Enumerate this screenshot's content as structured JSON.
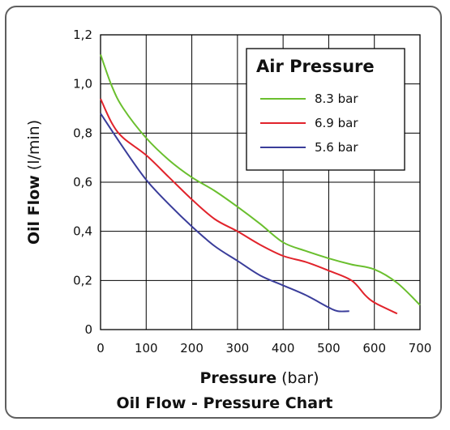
{
  "chart_data": {
    "type": "line",
    "title": "Oil Flow - Pressure Chart",
    "xlabel_bold": "Pressure",
    "xlabel_unit": "(bar)",
    "ylabel_bold": "Oil Flow",
    "ylabel_unit": "(l/min)",
    "xlim": [
      0,
      700
    ],
    "ylim": [
      0,
      1.2
    ],
    "x_ticks": [
      0,
      100,
      200,
      300,
      400,
      500,
      600,
      700
    ],
    "x_tick_labels": [
      "0",
      "100",
      "200",
      "300",
      "400",
      "500",
      "600",
      "700"
    ],
    "y_ticks": [
      0,
      0.2,
      0.4,
      0.6,
      0.8,
      1.0,
      1.2
    ],
    "y_tick_labels": [
      "0",
      "0,2",
      "0,4",
      "0,6",
      "0,8",
      "1,0",
      "1,2"
    ],
    "grid": true,
    "legend": {
      "title": "Air Pressure",
      "placement": "top-right"
    },
    "series": [
      {
        "name": "8.3 bar",
        "color": "#6abf2e",
        "x": [
          0,
          25,
          50,
          100,
          150,
          200,
          250,
          300,
          350,
          400,
          450,
          500,
          550,
          600,
          650,
          700
        ],
        "y": [
          1.12,
          0.99,
          0.9,
          0.78,
          0.69,
          0.62,
          0.565,
          0.5,
          0.43,
          0.355,
          0.32,
          0.29,
          0.265,
          0.245,
          0.19,
          0.1
        ]
      },
      {
        "name": "6.9 bar",
        "color": "#e1232b",
        "x": [
          0,
          25,
          50,
          100,
          150,
          200,
          250,
          300,
          350,
          400,
          450,
          500,
          550,
          580,
          600,
          650
        ],
        "y": [
          0.94,
          0.84,
          0.78,
          0.71,
          0.62,
          0.53,
          0.45,
          0.4,
          0.345,
          0.3,
          0.275,
          0.24,
          0.2,
          0.14,
          0.11,
          0.065
        ]
      },
      {
        "name": "5.6 bar",
        "color": "#3a3d9a",
        "x": [
          0,
          50,
          100,
          150,
          200,
          250,
          300,
          350,
          400,
          450,
          500,
          520,
          545
        ],
        "y": [
          0.88,
          0.74,
          0.61,
          0.51,
          0.42,
          0.34,
          0.28,
          0.22,
          0.18,
          0.14,
          0.09,
          0.075,
          0.075
        ]
      }
    ]
  }
}
